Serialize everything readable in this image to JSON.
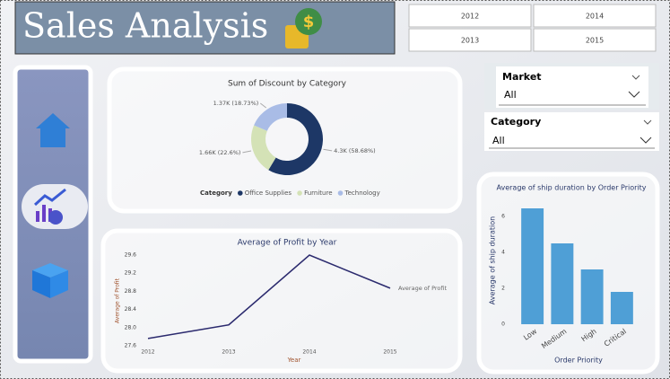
{
  "header": {
    "title": "Sales Analysis"
  },
  "year_buttons": [
    "2012",
    "2014",
    "2013",
    "2015"
  ],
  "slicers": [
    {
      "label": "Market",
      "value": "All"
    },
    {
      "label": "Category",
      "value": "All"
    }
  ],
  "chart_data": [
    {
      "type": "donut",
      "title": "Sum of Discount by Category",
      "legend_title": "Category",
      "categories": [
        "Office Supplies",
        "Furniture",
        "Technology"
      ],
      "values": [
        4300,
        1660,
        1370
      ],
      "value_labels": [
        "4.3K (58.68%)",
        "1.66K (22.6%)",
        "1.37K (18.73%)"
      ],
      "colors": [
        "#1d3766",
        "#d4e2b6",
        "#a9bce6"
      ],
      "legend": "bottom"
    },
    {
      "type": "line",
      "title": "Average of Profit by Year",
      "x_label": "Year",
      "y_label": "Average of Profit",
      "categories": [
        "2012",
        "2013",
        "2014",
        "2015"
      ],
      "series": [
        {
          "name": "Average of Profit",
          "color": "#2b2a6e",
          "values": [
            27.76,
            28.06,
            29.6,
            28.87
          ]
        }
      ],
      "ylim": [
        27.5,
        29.7
      ],
      "yticks": [
        27.6,
        {
          "value": 28,
          "label": "28.0"
        },
        28.4,
        28.8,
        29.2,
        29.6
      ],
      "grid": false
    },
    {
      "type": "bar",
      "title": "Average of ship duration by Order Priority",
      "x_label": "Order Priority",
      "y_label": "Average of ship duration",
      "categories": [
        "Low",
        "Medium",
        "High",
        "Critical"
      ],
      "values": [
        6.45,
        4.5,
        3.05,
        1.8
      ],
      "color": "#4f9fd6",
      "ylim": [
        0,
        6.8
      ],
      "yticks": [
        0,
        2,
        4,
        6
      ],
      "grid": false
    }
  ]
}
